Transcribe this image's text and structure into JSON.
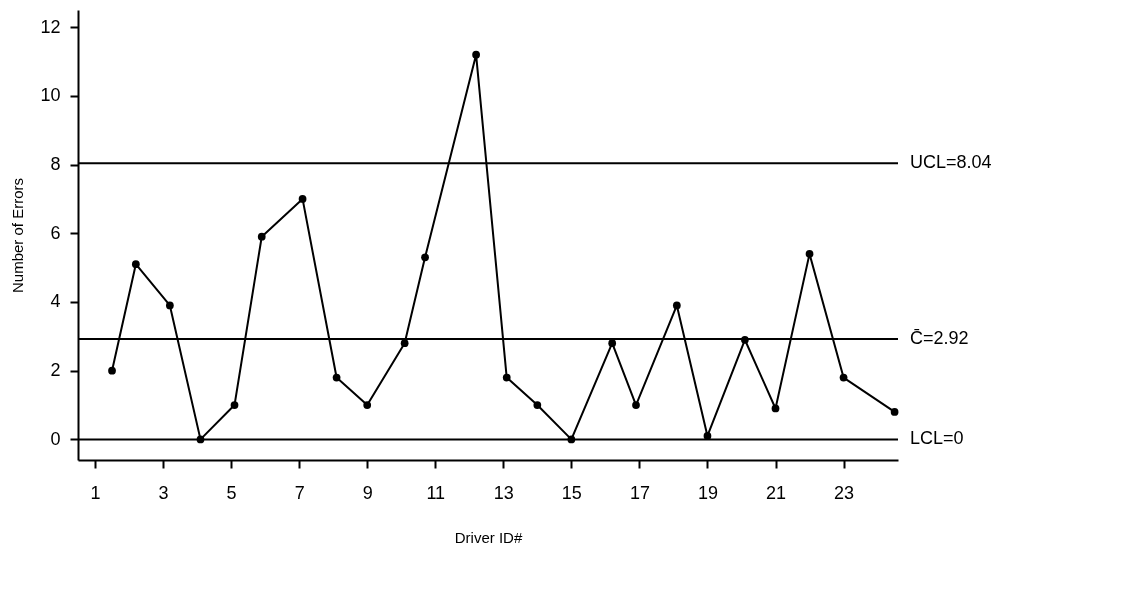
{
  "chart_data": {
    "type": "line",
    "xlabel": "Driver ID#",
    "ylabel": "Number of Errors",
    "x": [
      1.5,
      2.2,
      3.2,
      4.1,
      5.1,
      5.9,
      7.1,
      8.1,
      9.0,
      10.1,
      10.7,
      12.2,
      13.1,
      14.0,
      15.0,
      16.2,
      16.9,
      18.1,
      19.0,
      20.1,
      21.0,
      22.0,
      23.0,
      24.5
    ],
    "series": [
      {
        "color": "#000000",
        "values": [
          2,
          5.1,
          3.9,
          0,
          1,
          5.9,
          7,
          1.8,
          1,
          2.8,
          5.3,
          11.2,
          1.8,
          1,
          0,
          2.8,
          1,
          3.9,
          0.1,
          2.9,
          0.9,
          5.4,
          1.8,
          0.8
        ]
      }
    ],
    "xlim": [
      0.5,
      24.6
    ],
    "xticks": [
      1,
      3,
      5,
      7,
      9,
      11,
      13,
      15,
      17,
      19,
      21,
      23
    ],
    "ylim": [
      -0.6,
      12.5
    ],
    "yticks": [
      0,
      2,
      4,
      6,
      8,
      10,
      12
    ],
    "ref_lines": [
      {
        "axis": "y",
        "value": 8.04,
        "label": "UCL=8.04",
        "color": "#000000"
      },
      {
        "axis": "y",
        "value": 2.92,
        "label": "C̄=2.92",
        "color": "#000000"
      },
      {
        "axis": "y",
        "value": 0,
        "label": "LCL=0",
        "color": "#000000"
      }
    ],
    "grid": false,
    "marker": "circle",
    "line_style": "solid"
  }
}
